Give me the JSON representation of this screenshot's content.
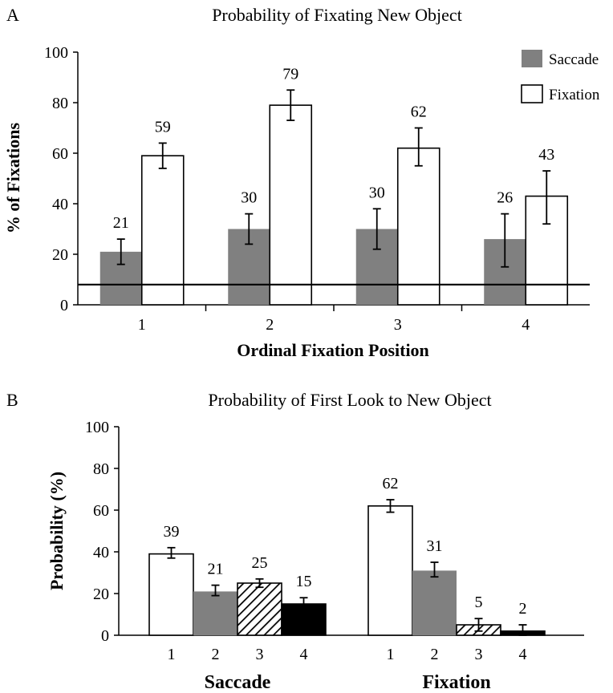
{
  "chart_data": [
    {
      "panel": "A",
      "type": "bar",
      "title": "Probability of Fixating New Object",
      "xlabel": "Ordinal Fixation Position",
      "ylabel": "% of Fixations",
      "ylim": [
        0,
        100
      ],
      "yticks": [
        "0",
        "20",
        "40",
        "60",
        "80",
        "100"
      ],
      "categories": [
        "1",
        "2",
        "3",
        "4"
      ],
      "series": [
        {
          "name": "Saccade",
          "color": "#808080",
          "values": [
            21,
            30,
            30,
            26
          ],
          "err_low": [
            16,
            24,
            22,
            15
          ],
          "err_high": [
            26,
            36,
            38,
            36
          ],
          "labels": [
            "21",
            "30",
            "30",
            "26"
          ]
        },
        {
          "name": "Fixation",
          "color": "#ffffff",
          "values": [
            59,
            79,
            62,
            43
          ],
          "err_low": [
            54,
            73,
            55,
            32
          ],
          "err_high": [
            64,
            85,
            70,
            53
          ],
          "labels": [
            "59",
            "79",
            "62",
            "43"
          ]
        }
      ],
      "reference_line": 8,
      "legend": "top-right",
      "grid": false
    },
    {
      "panel": "B",
      "type": "bar",
      "title": "Probability of First Look to New  Object",
      "xlabel": "",
      "ylabel": "Probability (%)",
      "ylim": [
        0,
        100
      ],
      "yticks": [
        "0",
        "20",
        "40",
        "60",
        "80",
        "100"
      ],
      "groups": [
        {
          "name": "Saccade",
          "categories": [
            "1",
            "2",
            "3",
            "4"
          ],
          "values": [
            39,
            21,
            25,
            15
          ],
          "err_low": [
            37,
            19,
            23,
            12
          ],
          "err_high": [
            42,
            24,
            27,
            18
          ],
          "labels": [
            "39",
            "21",
            "25",
            "15"
          ]
        },
        {
          "name": "Fixation",
          "categories": [
            "1",
            "2",
            "3",
            "4"
          ],
          "values": [
            62,
            31,
            5,
            2
          ],
          "err_low": [
            59,
            28,
            2,
            0
          ],
          "err_high": [
            65,
            35,
            8,
            5
          ],
          "labels": [
            "62",
            "31",
            "5",
            "2"
          ]
        }
      ],
      "category_fills": [
        "white",
        "gray",
        "hatched",
        "black"
      ],
      "legend": "none",
      "grid": false
    }
  ]
}
